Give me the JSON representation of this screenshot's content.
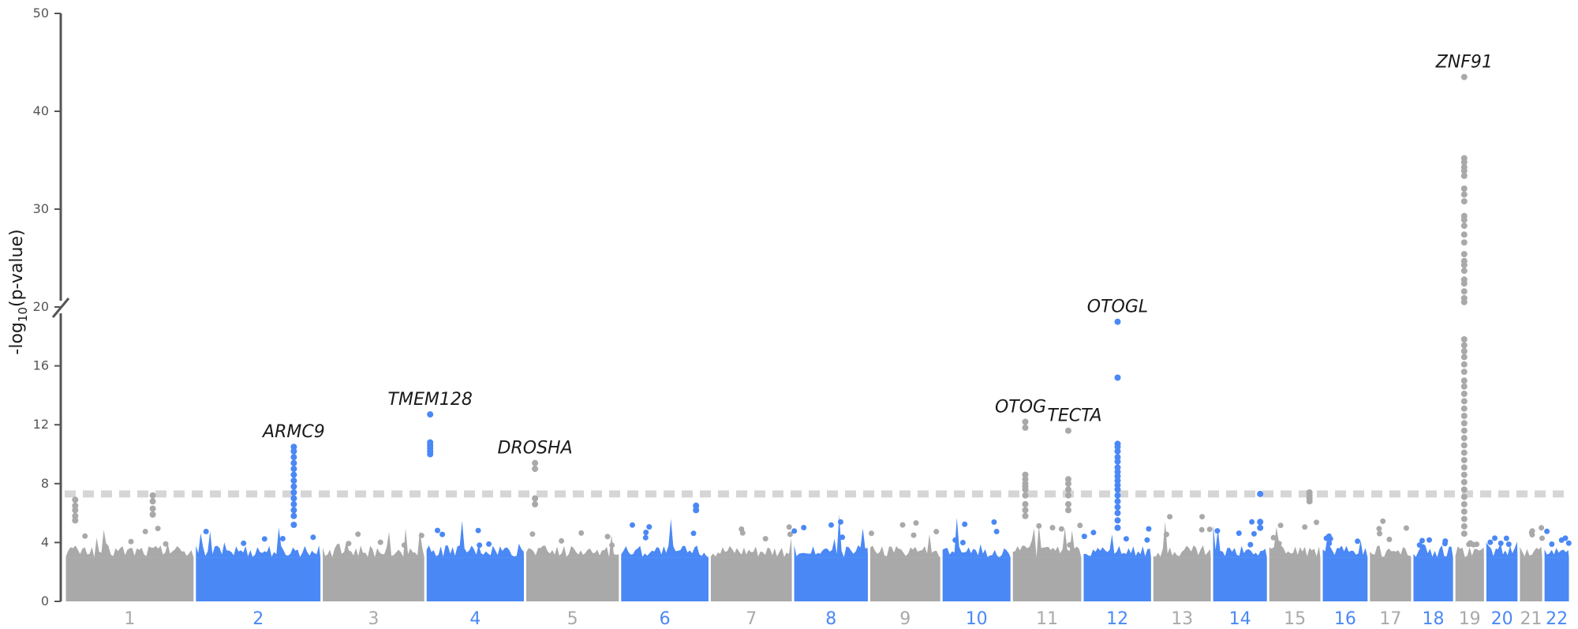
{
  "chart_data": {
    "type": "scatter",
    "title": "",
    "ylabel": "-log",
    "ylabel_sub": "10",
    "ylabel_tail": "(p-value)",
    "ylim": [
      0,
      50
    ],
    "y_axis_break": [
      20,
      20
    ],
    "y_ticks_lower": [
      "0",
      "4",
      "8",
      "12",
      "16",
      "20"
    ],
    "y_ticks_upper": [
      "30",
      "40",
      "50"
    ],
    "significance_threshold": 7.3,
    "colors": {
      "odd": "#a9a9a9",
      "even": "#4a88f5",
      "threshold": "#d6d6d6",
      "axis": "#555555"
    },
    "chromosomes": [
      {
        "label": "1",
        "start": 0,
        "end": 248,
        "max_bg": 5.0
      },
      {
        "label": "2",
        "start": 248,
        "end": 490,
        "max_bg": 5.3
      },
      {
        "label": "3",
        "start": 490,
        "end": 688,
        "max_bg": 5.0
      },
      {
        "label": "4",
        "start": 688,
        "end": 878,
        "max_bg": 5.8
      },
      {
        "label": "5",
        "start": 878,
        "end": 1059,
        "max_bg": 5.0
      },
      {
        "label": "6",
        "start": 1059,
        "end": 1230,
        "max_bg": 6.2
      },
      {
        "label": "7",
        "start": 1230,
        "end": 1389,
        "max_bg": 5.5
      },
      {
        "label": "8",
        "start": 1389,
        "end": 1534,
        "max_bg": 6.0
      },
      {
        "label": "9",
        "start": 1534,
        "end": 1672,
        "max_bg": 6.3
      },
      {
        "label": "10",
        "start": 1672,
        "end": 1806,
        "max_bg": 6.0
      },
      {
        "label": "11",
        "start": 1806,
        "end": 1941,
        "max_bg": 5.2
      },
      {
        "label": "12",
        "start": 1941,
        "end": 2074,
        "max_bg": 5.0
      },
      {
        "label": "13",
        "start": 2074,
        "end": 2188,
        "max_bg": 6.8
      },
      {
        "label": "14",
        "start": 2188,
        "end": 2295,
        "max_bg": 5.5
      },
      {
        "label": "15",
        "start": 2295,
        "end": 2397,
        "max_bg": 5.5
      },
      {
        "label": "16",
        "start": 2397,
        "end": 2487,
        "max_bg": 4.5
      },
      {
        "label": "17",
        "start": 2487,
        "end": 2570,
        "max_bg": 5.5
      },
      {
        "label": "18",
        "start": 2570,
        "end": 2650,
        "max_bg": 4.2
      },
      {
        "label": "19",
        "start": 2650,
        "end": 2709,
        "max_bg": 4.0
      },
      {
        "label": "20",
        "start": 2709,
        "end": 2773,
        "max_bg": 4.3
      },
      {
        "label": "21",
        "start": 2773,
        "end": 2820,
        "max_bg": 5.0
      },
      {
        "label": "22",
        "start": 2820,
        "end": 2871,
        "max_bg": 5.0
      }
    ],
    "peaks": [
      {
        "chrom": "1",
        "x": 20,
        "values": [
          6.9,
          6.5,
          6.2,
          5.8,
          5.5
        ]
      },
      {
        "chrom": "1",
        "x": 168,
        "values": [
          7.2,
          6.8,
          6.3,
          5.9
        ]
      },
      {
        "chrom": "2",
        "x": 437,
        "values": [
          10.5,
          10.2,
          9.8,
          9.4,
          9.0,
          8.6,
          8.2,
          7.8,
          7.4,
          7.0,
          6.6,
          6.2,
          5.8,
          5.2
        ]
      },
      {
        "chrom": "4",
        "x": 697,
        "values": [
          12.7,
          10.8,
          10.6,
          10.4,
          10.2,
          10.0
        ]
      },
      {
        "chrom": "5",
        "x": 897,
        "values": [
          9.4,
          9.0,
          7.0,
          6.6
        ]
      },
      {
        "chrom": "6",
        "x": 1204,
        "values": [
          6.5,
          6.2
        ]
      },
      {
        "chrom": "11",
        "x": 1832,
        "values": [
          12.2,
          11.8,
          8.6,
          8.3,
          8.0,
          7.8,
          7.6,
          7.2,
          6.6,
          6.2,
          5.8
        ]
      },
      {
        "chrom": "11",
        "x": 1914,
        "values": [
          11.6,
          8.3,
          8.0,
          7.6,
          7.2,
          6.6,
          6.2
        ]
      },
      {
        "chrom": "12",
        "x": 2008,
        "values": [
          19.0,
          15.2,
          10.7,
          10.5,
          10.2,
          9.8,
          9.5,
          9.1,
          8.8,
          8.5,
          8.2,
          7.9,
          7.6,
          7.2,
          6.8,
          6.4,
          6.0,
          5.5,
          5.0
        ]
      },
      {
        "chrom": "14",
        "x": 2280,
        "values": [
          7.3,
          5.4,
          5.0
        ]
      },
      {
        "chrom": "15",
        "x": 2374,
        "values": [
          7.4,
          7.2,
          7.0,
          6.8
        ]
      },
      {
        "chrom": "19",
        "x": 2669,
        "values": [
          43.5,
          35.2,
          34.8,
          34.3,
          33.9,
          33.4,
          32.1,
          31.5,
          30.8,
          29.3,
          28.9,
          28.3,
          27.4,
          26.6,
          25.4,
          24.7,
          24.3,
          23.7,
          22.8,
          22.4,
          21.6,
          20.9,
          20.5,
          17.8,
          17.4,
          17.0,
          16.6,
          16.1,
          15.6,
          15.0,
          14.6,
          14.1,
          13.6,
          13.1,
          12.6,
          12.1,
          11.6,
          11.1,
          10.6,
          10.1,
          9.6,
          9.1,
          8.6,
          8.1,
          7.6,
          7.1,
          6.6,
          6.1,
          5.6,
          5.1,
          4.6
        ]
      }
    ],
    "annotations": [
      {
        "text": "ZNF91",
        "chrom": "19",
        "x": 2669,
        "y": 43.5
      },
      {
        "text": "OTOGL",
        "chrom": "12",
        "x": 2008,
        "y": 19.0
      },
      {
        "text": "TMEM128",
        "chrom": "4",
        "x": 697,
        "y": 12.7
      },
      {
        "text": "ARMC9",
        "chrom": "2",
        "x": 437,
        "y": 10.5
      },
      {
        "text": "DROSHA",
        "chrom": "5",
        "x": 897,
        "y": 9.4
      },
      {
        "text": "OTOG",
        "chrom": "11",
        "x": 1832,
        "y": 12.2
      },
      {
        "text": "TECTA",
        "chrom": "11",
        "x": 1914,
        "y": 11.6
      }
    ]
  }
}
